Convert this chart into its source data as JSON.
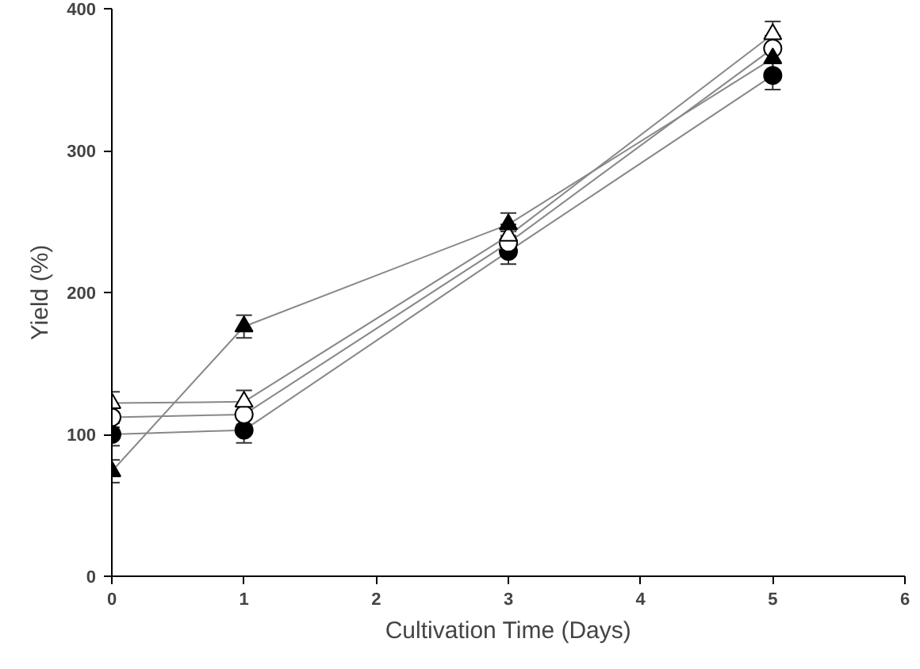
{
  "chart_data": {
    "type": "line",
    "xlabel": "Cultivation Time (Days)",
    "ylabel": "Yield (%)",
    "xlim": [
      0,
      6
    ],
    "xticks": [
      0,
      1,
      2,
      3,
      4,
      5,
      6
    ],
    "ylim": [
      0,
      400
    ],
    "yticks": [
      0,
      100,
      200,
      300,
      400
    ],
    "grid": false,
    "series": [
      {
        "x": [
          0,
          1,
          3,
          5
        ],
        "values": [
          100,
          103,
          229,
          353
        ],
        "errors": [
          8,
          9,
          9,
          10
        ],
        "color": "#000000",
        "marker": "circle"
      },
      {
        "x": [
          0,
          1,
          3,
          5
        ],
        "values": [
          112,
          114,
          235,
          372
        ],
        "errors": [
          7,
          7,
          8,
          9
        ],
        "color": "#ffffff",
        "marker": "circle"
      },
      {
        "x": [
          0,
          1,
          3,
          5
        ],
        "values": [
          122,
          123,
          240,
          382
        ],
        "errors": [
          8,
          8,
          8,
          9
        ],
        "color": "#ffffff",
        "marker": "triangle"
      },
      {
        "x": [
          0,
          1,
          3,
          5
        ],
        "values": [
          74,
          176,
          248,
          365
        ],
        "errors": [
          8,
          8,
          8,
          9
        ],
        "color": "#000000",
        "marker": "triangle"
      }
    ]
  }
}
